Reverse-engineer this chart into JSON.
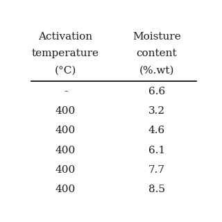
{
  "col1_header": [
    "Activation",
    "temperature",
    "(°C)"
  ],
  "col2_header": [
    "Moisture",
    "content",
    "(%.wt)"
  ],
  "col1_data": [
    "-",
    "400",
    "400",
    "400",
    "400",
    "400"
  ],
  "col2_data": [
    "6.6",
    "3.2",
    "4.6",
    "6.1",
    "7.7",
    "8.5"
  ],
  "bg_color": "#ffffff",
  "text_color": "#1a1a1a",
  "font_size": 11
}
